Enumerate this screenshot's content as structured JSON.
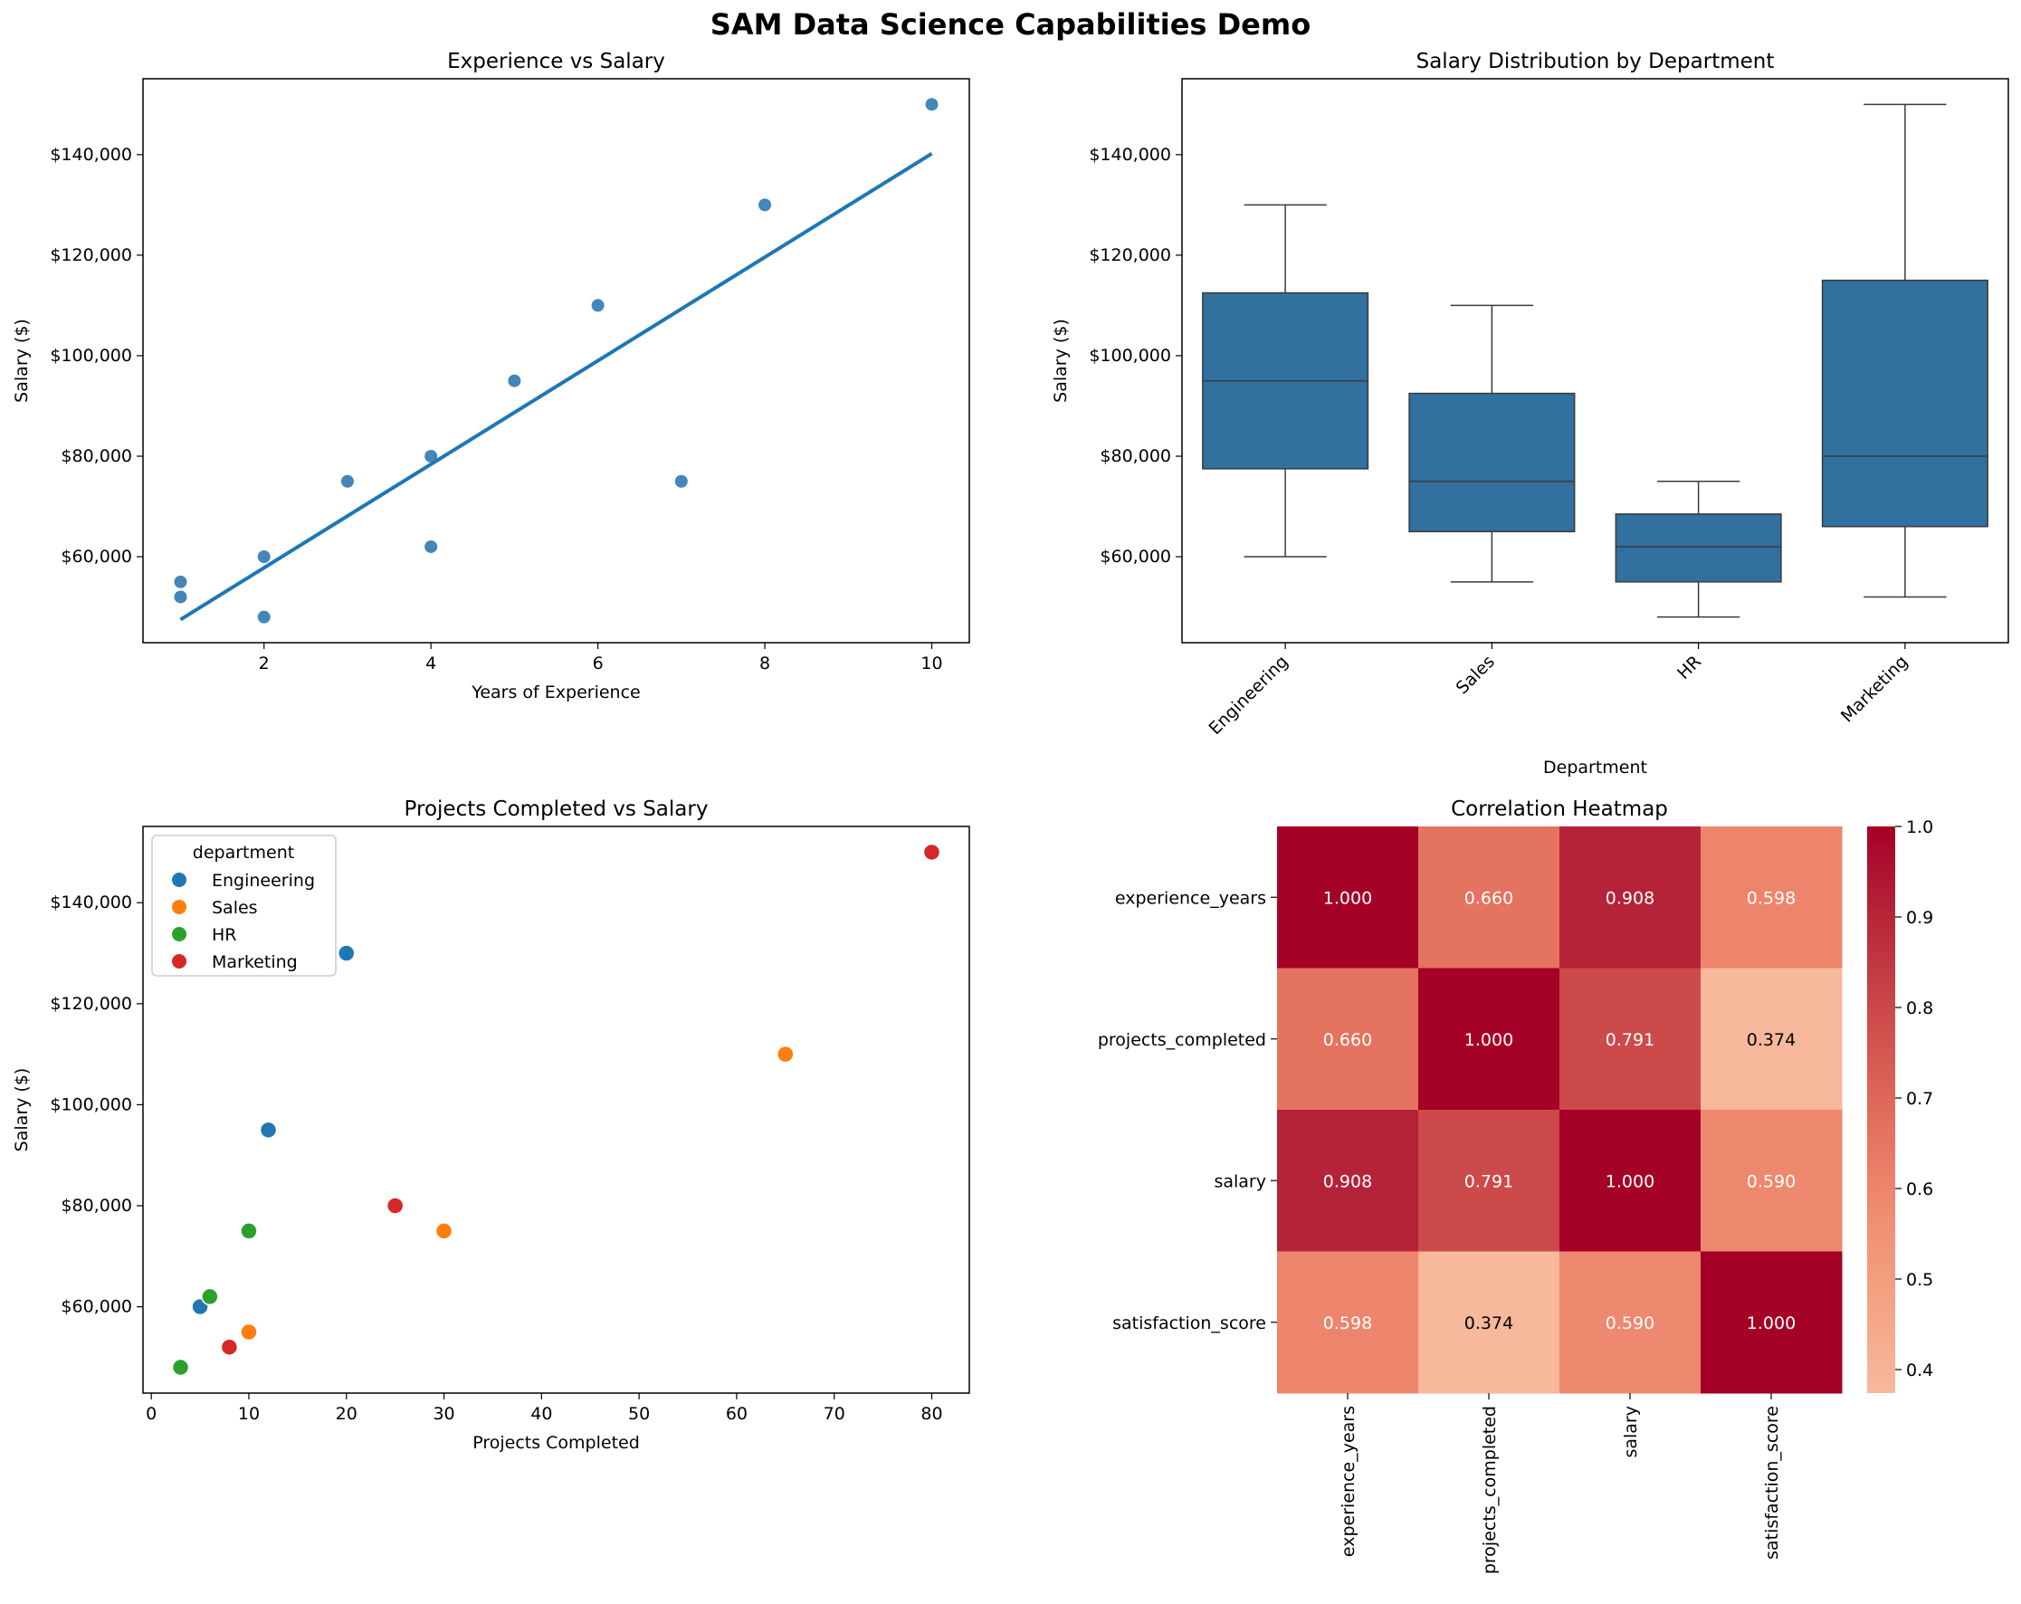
{
  "figure": {
    "title": "SAM Data Science Capabilities Demo"
  },
  "colors": {
    "steelblue": "#3a7fb6",
    "line": "#1f77b4",
    "box": "#31709f",
    "engineering": "#1f77b4",
    "sales": "#ff7f0e",
    "hr": "#2ca02c",
    "marketing": "#d62728"
  },
  "chart_data": [
    {
      "id": "experience-vs-salary",
      "type": "scatter",
      "title": "Experience vs Salary",
      "xlabel": "Years of Experience",
      "ylabel": "Salary ($)",
      "xlim": [
        0.55,
        10.45
      ],
      "ylim": [
        42900,
        155100
      ],
      "xticks": [
        2,
        4,
        6,
        8,
        10
      ],
      "yticks": [
        60000,
        80000,
        100000,
        120000,
        140000
      ],
      "ytick_labels": [
        "$60,000",
        "$80,000",
        "$100,000",
        "$120,000",
        "$140,000"
      ],
      "grid": false,
      "points": [
        {
          "x": 1,
          "y": 55000
        },
        {
          "x": 1,
          "y": 52000
        },
        {
          "x": 2,
          "y": 60000
        },
        {
          "x": 2,
          "y": 48000
        },
        {
          "x": 3,
          "y": 75000
        },
        {
          "x": 4,
          "y": 80000
        },
        {
          "x": 4,
          "y": 62000
        },
        {
          "x": 5,
          "y": 95000
        },
        {
          "x": 6,
          "y": 110000
        },
        {
          "x": 7,
          "y": 75000
        },
        {
          "x": 8,
          "y": 130000
        },
        {
          "x": 10,
          "y": 150000
        }
      ],
      "regression_line": [
        {
          "x": 1,
          "y": 47500
        },
        {
          "x": 10,
          "y": 140200
        }
      ]
    },
    {
      "id": "salary-by-department",
      "type": "box",
      "title": "Salary Distribution by Department",
      "xlabel": "Department",
      "ylabel": "Salary ($)",
      "ylim": [
        42900,
        155100
      ],
      "yticks": [
        60000,
        80000,
        100000,
        120000,
        140000
      ],
      "ytick_labels": [
        "$60,000",
        "$80,000",
        "$100,000",
        "$120,000",
        "$140,000"
      ],
      "categories": [
        "Engineering",
        "Sales",
        "HR",
        "Marketing"
      ],
      "boxes": [
        {
          "name": "Engineering",
          "min": 60000,
          "q1": 77500,
          "median": 95000,
          "q3": 112500,
          "max": 130000
        },
        {
          "name": "Sales",
          "min": 55000,
          "q1": 65000,
          "median": 75000,
          "q3": 92500,
          "max": 110000
        },
        {
          "name": "HR",
          "min": 48000,
          "q1": 55000,
          "median": 62000,
          "q3": 68500,
          "max": 75000
        },
        {
          "name": "Marketing",
          "min": 52000,
          "q1": 66000,
          "median": 80000,
          "q3": 115000,
          "max": 150000
        }
      ]
    },
    {
      "id": "projects-vs-salary",
      "type": "scatter",
      "title": "Projects Completed vs Salary",
      "xlabel": "Projects Completed",
      "ylabel": "Salary ($)",
      "xlim": [
        -0.85,
        83.85
      ],
      "ylim": [
        42900,
        155100
      ],
      "xticks": [
        0,
        10,
        20,
        30,
        40,
        50,
        60,
        70,
        80
      ],
      "yticks": [
        60000,
        80000,
        100000,
        120000,
        140000
      ],
      "ytick_labels": [
        "$60,000",
        "$80,000",
        "$100,000",
        "$120,000",
        "$140,000"
      ],
      "legend": {
        "title": "department",
        "placement": "top-left",
        "entries": [
          "Engineering",
          "Sales",
          "HR",
          "Marketing"
        ]
      },
      "points": [
        {
          "x": 5,
          "y": 60000,
          "department": "Engineering"
        },
        {
          "x": 12,
          "y": 95000,
          "department": "Engineering"
        },
        {
          "x": 20,
          "y": 130000,
          "department": "Engineering"
        },
        {
          "x": 10,
          "y": 55000,
          "department": "Sales"
        },
        {
          "x": 30,
          "y": 75000,
          "department": "Sales"
        },
        {
          "x": 65,
          "y": 110000,
          "department": "Sales"
        },
        {
          "x": 3,
          "y": 48000,
          "department": "HR"
        },
        {
          "x": 6,
          "y": 62000,
          "department": "HR"
        },
        {
          "x": 10,
          "y": 75000,
          "department": "HR"
        },
        {
          "x": 8,
          "y": 52000,
          "department": "Marketing"
        },
        {
          "x": 25,
          "y": 80000,
          "department": "Marketing"
        },
        {
          "x": 80,
          "y": 150000,
          "department": "Marketing"
        }
      ]
    },
    {
      "id": "correlation-heatmap",
      "type": "heatmap",
      "title": "Correlation Heatmap",
      "labels": [
        "experience_years",
        "projects_completed",
        "salary",
        "satisfaction_score"
      ],
      "values": [
        [
          1.0,
          0.66,
          0.908,
          0.598
        ],
        [
          0.66,
          1.0,
          0.791,
          0.374
        ],
        [
          0.908,
          0.791,
          1.0,
          0.59
        ],
        [
          0.598,
          0.374,
          0.59,
          1.0
        ]
      ],
      "value_labels": [
        [
          "1.000",
          "0.660",
          "0.908",
          "0.598"
        ],
        [
          "0.660",
          "1.000",
          "0.791",
          "0.374"
        ],
        [
          "0.908",
          "0.791",
          "1.000",
          "0.590"
        ],
        [
          "0.598",
          "0.374",
          "0.590",
          "1.000"
        ]
      ],
      "colorbar": {
        "range": [
          0.374,
          1.0
        ],
        "ticks": [
          0.4,
          0.5,
          0.6,
          0.7,
          0.8,
          0.9,
          1.0
        ],
        "tick_labels": [
          "0.4",
          "0.5",
          "0.6",
          "0.7",
          "0.8",
          "0.9",
          "1.0"
        ],
        "colors": [
          "#f7b89c",
          "#f4a283",
          "#ef8a6f",
          "#e06b5b",
          "#cd4a4a",
          "#b7283a",
          "#a50026"
        ]
      }
    }
  ]
}
